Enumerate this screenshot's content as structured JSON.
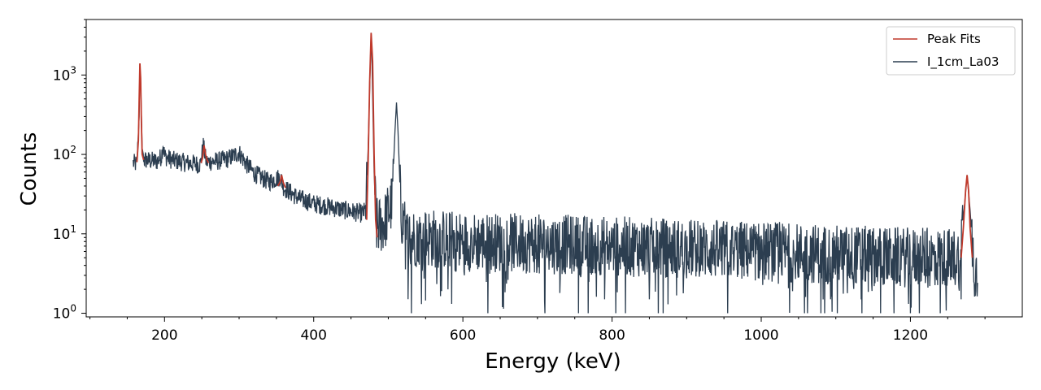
{
  "chart_data": {
    "type": "line",
    "title": "",
    "xlabel": "Energy (keV)",
    "ylabel": "Counts",
    "xlim": [
      95,
      1350
    ],
    "ylim": [
      0.9,
      5000
    ],
    "yscale": "log",
    "grid": false,
    "legend_position": "top-right",
    "x_ticks": [
      200,
      400,
      600,
      800,
      1000,
      1200
    ],
    "x_tick_labels": [
      "200",
      "400",
      "600",
      "800",
      "1000",
      "1200"
    ],
    "y_ticks": [
      1,
      10,
      100,
      1000
    ],
    "y_tick_labels": [
      {
        "base": "10",
        "exp": "0"
      },
      {
        "base": "10",
        "exp": "1"
      },
      {
        "base": "10",
        "exp": "2"
      },
      {
        "base": "10",
        "exp": "3"
      }
    ],
    "series": [
      {
        "name": "Peak Fits",
        "color": "#c0392b",
        "segments": [
          {
            "x": [
              163,
              165,
              166,
              167,
              168,
              169,
              170,
              172
            ],
            "y": [
              80,
              150,
              500,
              1400,
              900,
              250,
              100,
              85
            ]
          },
          {
            "x": [
              249,
              251,
              253,
              255,
              257,
              259
            ],
            "y": [
              78,
              90,
              130,
              100,
              85,
              78
            ]
          },
          {
            "x": [
              352,
              355,
              357,
              359,
              362
            ],
            "y": [
              40,
              45,
              55,
              45,
              38
            ]
          },
          {
            "x": [
              471,
              473,
              475,
              477,
              479,
              481,
              483,
              485
            ],
            "y": [
              15,
              80,
              800,
              3400,
              1500,
              100,
              15,
              9
            ]
          },
          {
            "x": [
              1268,
              1271,
              1274,
              1276,
              1278,
              1280,
              1283
            ],
            "y": [
              5,
              12,
              35,
              55,
              35,
              12,
              5
            ]
          }
        ]
      },
      {
        "name": "I_1cm_La03",
        "color": "#2c3e50",
        "anchors": [
          [
            158,
            78
          ],
          [
            163,
            75
          ],
          [
            166,
            300
          ],
          [
            167,
            1400
          ],
          [
            168,
            800
          ],
          [
            170,
            120
          ],
          [
            173,
            85
          ],
          [
            190,
            82
          ],
          [
            196,
            95
          ],
          [
            198,
            140
          ],
          [
            200,
            95
          ],
          [
            210,
            85
          ],
          [
            230,
            78
          ],
          [
            248,
            75
          ],
          [
            252,
            130
          ],
          [
            256,
            80
          ],
          [
            270,
            82
          ],
          [
            285,
            88
          ],
          [
            300,
            105
          ],
          [
            310,
            75
          ],
          [
            320,
            58
          ],
          [
            340,
            45
          ],
          [
            355,
            52
          ],
          [
            360,
            38
          ],
          [
            380,
            28
          ],
          [
            400,
            24
          ],
          [
            420,
            22
          ],
          [
            440,
            20
          ],
          [
            465,
            18
          ],
          [
            470,
            20
          ],
          [
            473,
            120
          ],
          [
            476,
            1500
          ],
          [
            477,
            3400
          ],
          [
            478,
            1700
          ],
          [
            481,
            60
          ],
          [
            484,
            12
          ],
          [
            495,
            14
          ],
          [
            505,
            25
          ],
          [
            509,
            200
          ],
          [
            511,
            450
          ],
          [
            513,
            200
          ],
          [
            517,
            18
          ],
          [
            525,
            9
          ],
          [
            550,
            9
          ],
          [
            600,
            8
          ],
          [
            700,
            7.5
          ],
          [
            800,
            7
          ],
          [
            900,
            6.5
          ],
          [
            1000,
            6
          ],
          [
            1100,
            5.5
          ],
          [
            1200,
            5
          ],
          [
            1265,
            5
          ],
          [
            1272,
            20
          ],
          [
            1276,
            55
          ],
          [
            1280,
            20
          ],
          [
            1285,
            4
          ],
          [
            1290,
            3
          ]
        ],
        "noise_dips": [
          [
            531,
            1
          ],
          [
            580,
            2
          ],
          [
            710,
            1
          ],
          [
            730,
            1.8
          ],
          [
            755,
            1
          ],
          [
            768,
            1
          ],
          [
            790,
            1.5
          ],
          [
            805,
            1
          ],
          [
            818,
            1
          ],
          [
            850,
            1.5
          ],
          [
            862,
            1
          ],
          [
            955,
            1
          ],
          [
            1058,
            1
          ],
          [
            1062,
            1
          ],
          [
            1080,
            1
          ],
          [
            1085,
            1
          ],
          [
            1093,
            1.5
          ],
          [
            1102,
            1
          ],
          [
            1135,
            1
          ],
          [
            1160,
            1
          ],
          [
            1178,
            1
          ],
          [
            1200,
            1
          ],
          [
            1240,
            1
          ],
          [
            1268,
            1.5
          ]
        ]
      }
    ]
  }
}
